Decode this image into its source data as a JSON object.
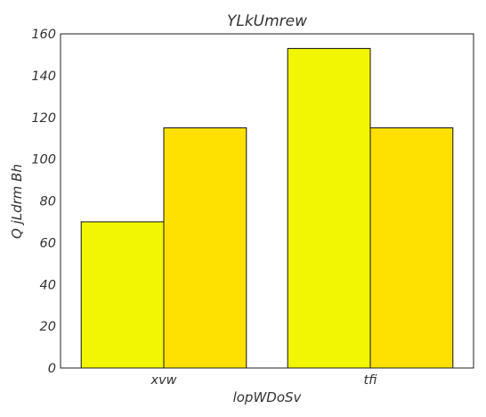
{
  "chart_data": {
    "type": "bar",
    "title": "YLkUmrew",
    "xlabel": "lopWDoSv",
    "ylabel": "Q jLdrm Bh",
    "categories": [
      "xvw",
      "tfi"
    ],
    "series": [
      {
        "values": [
          70,
          153
        ],
        "color": "#f2f700"
      },
      {
        "values": [
          115,
          115
        ],
        "color": "#ffe100"
      }
    ],
    "ylim": [
      0,
      160
    ],
    "yticks": [
      0,
      20,
      40,
      60,
      80,
      100,
      120,
      140,
      160
    ],
    "grid": false,
    "legend": "none"
  }
}
